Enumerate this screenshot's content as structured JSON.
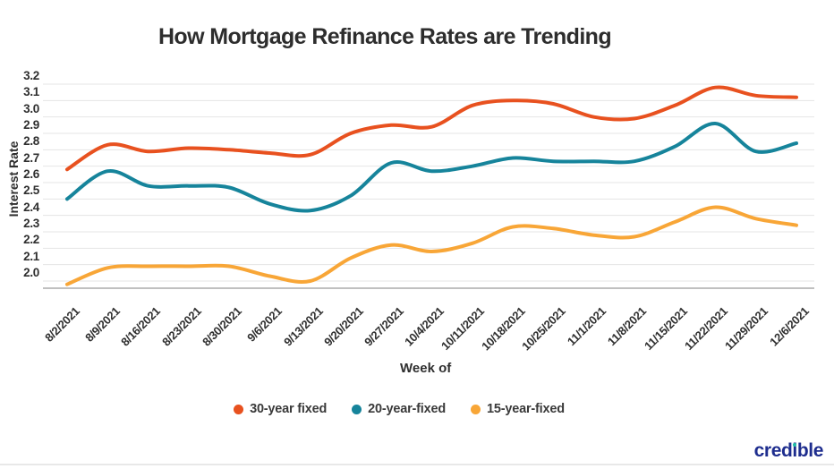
{
  "chart_data": {
    "type": "line",
    "title": "How Mortgage Refinance Rates are Trending",
    "xlabel": "Week of",
    "ylabel": "Interest Rate",
    "x": [
      "8/2/2021",
      "8/9/2021",
      "8/16/2021",
      "8/23/2021",
      "8/30/2021",
      "9/6/2021",
      "9/13/2021",
      "9/20/2021",
      "9/27/2021",
      "10/4/2021",
      "10/11/2021",
      "10/18/2021",
      "10/25/2021",
      "11/1/2021",
      "11/8/2021",
      "11/15/2021",
      "11/22/2021",
      "11/29/2021",
      "12/6/2021"
    ],
    "yticks": [
      "3.2",
      "3.1",
      "3.0",
      "2.9",
      "2.8",
      "2.7",
      "2.6",
      "2.5",
      "2.4",
      "2.3",
      "2.2",
      "2.1",
      "2.0"
    ],
    "ylim": [
      2.0,
      3.2
    ],
    "grid": true,
    "legend_position": "bottom",
    "series": [
      {
        "name": "30-year fixed",
        "color": "#e8511f",
        "values": [
          2.68,
          2.83,
          2.79,
          2.81,
          2.8,
          2.78,
          2.77,
          2.9,
          2.95,
          2.94,
          3.07,
          3.1,
          3.08,
          3.0,
          2.99,
          3.07,
          3.18,
          3.13,
          3.12
        ]
      },
      {
        "name": "20-year-fixed",
        "color": "#16849b",
        "values": [
          2.5,
          2.67,
          2.58,
          2.58,
          2.57,
          2.47,
          2.43,
          2.52,
          2.72,
          2.67,
          2.7,
          2.75,
          2.73,
          2.73,
          2.73,
          2.82,
          2.96,
          2.79,
          2.84
        ]
      },
      {
        "name": "15-year-fixed",
        "color": "#f8a637",
        "values": [
          1.98,
          2.08,
          2.09,
          2.09,
          2.09,
          2.03,
          2.0,
          2.14,
          2.22,
          2.18,
          2.23,
          2.33,
          2.32,
          2.28,
          2.27,
          2.36,
          2.45,
          2.38,
          2.34
        ]
      }
    ]
  },
  "logo": {
    "part1": "cred",
    "i": "i",
    "part2": "ble",
    "color": "#1e2d8e",
    "dot_color": "#21bea6"
  },
  "colors": {
    "grid": "#e4e4e4",
    "axis": "#c0c0c0",
    "text": "#2e2e2e"
  }
}
